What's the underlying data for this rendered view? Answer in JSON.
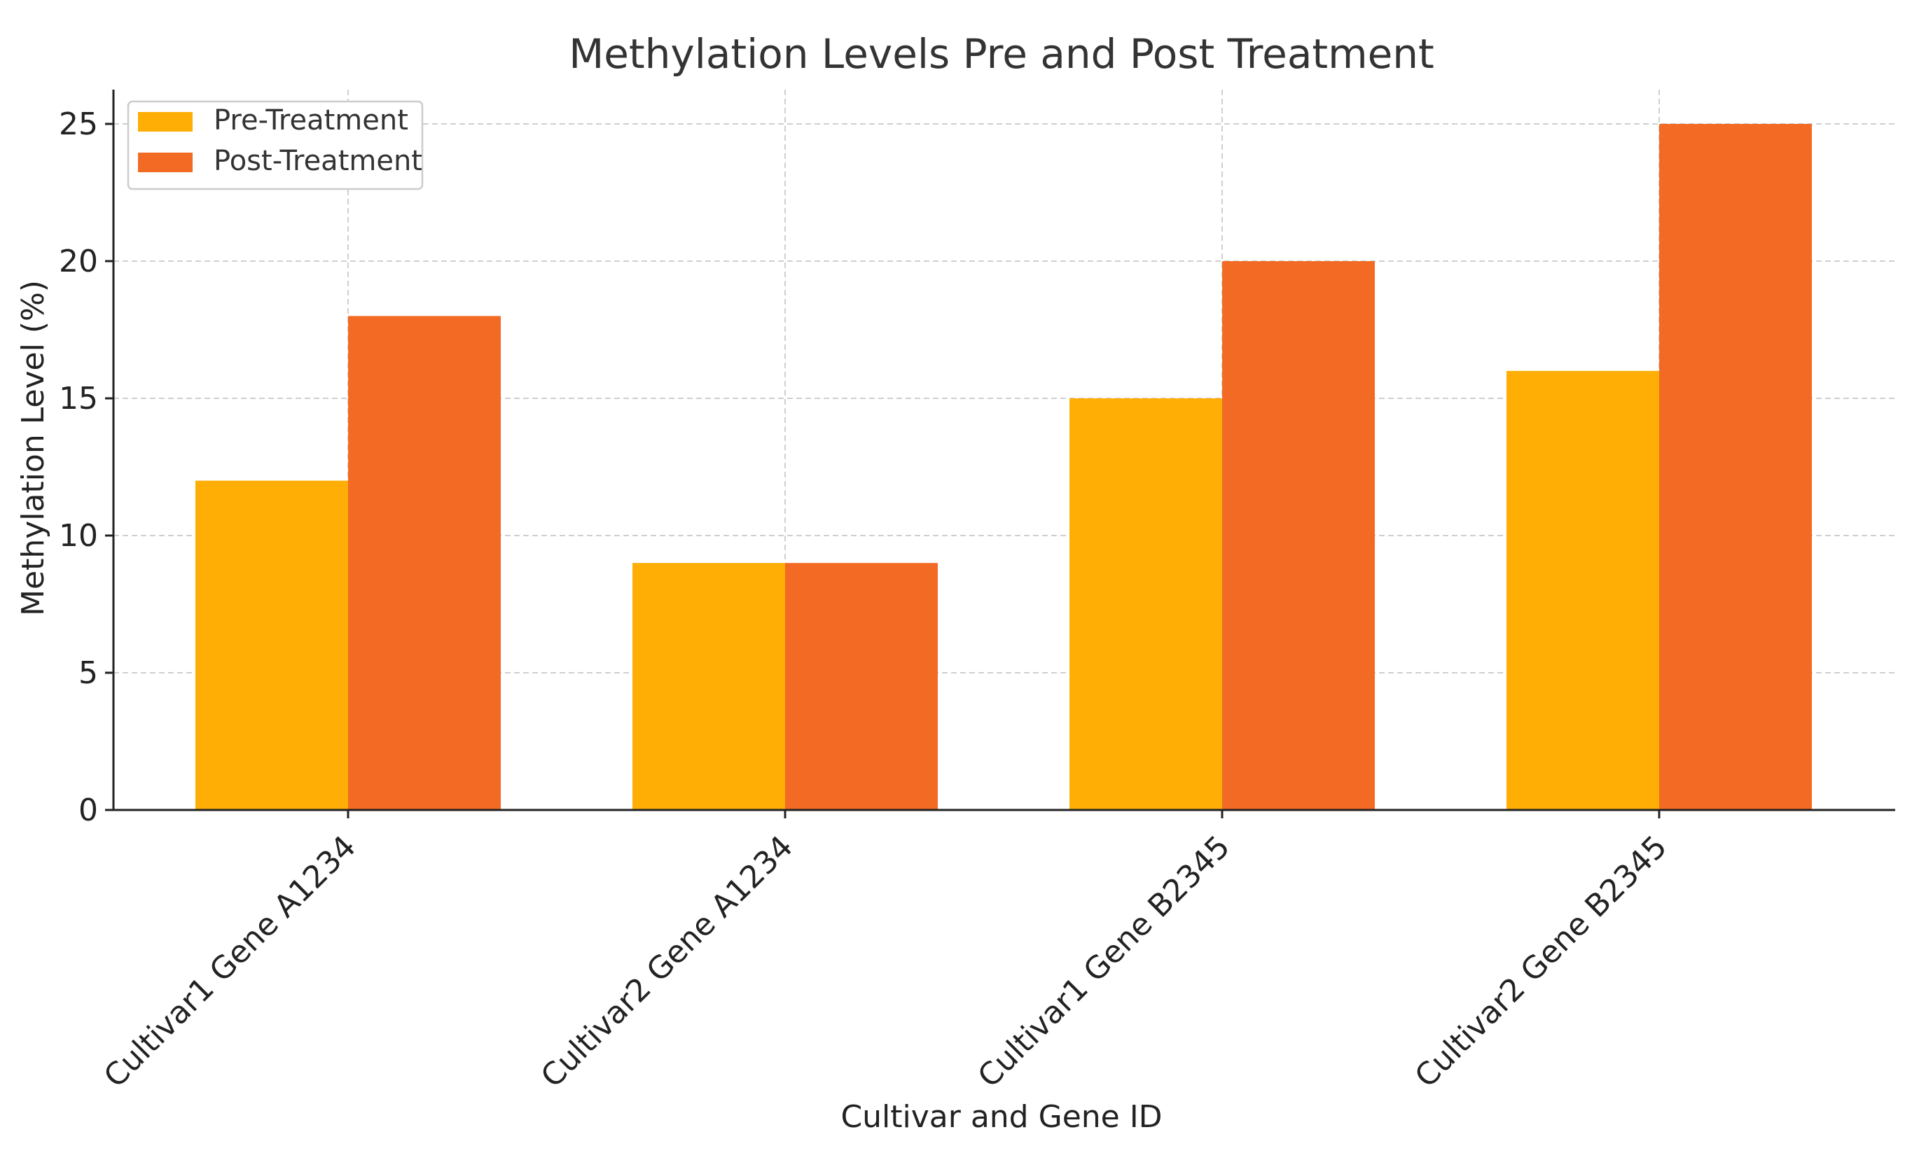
{
  "chart_data": {
    "type": "bar",
    "title": "Methylation Levels Pre and Post Treatment",
    "xlabel": "Cultivar and Gene ID",
    "ylabel": "Methylation Level (%)",
    "categories": [
      "Cultivar1 Gene A1234",
      "Cultivar2 Gene A1234",
      "Cultivar1 Gene B2345",
      "Cultivar2 Gene B2345"
    ],
    "series": [
      {
        "name": "Pre-Treatment",
        "color": "#FFAE05",
        "values": [
          12,
          9,
          15,
          16
        ]
      },
      {
        "name": "Post-Treatment",
        "color": "#F26A23",
        "values": [
          18,
          9,
          20,
          25
        ]
      }
    ],
    "ylim": [
      0,
      26.25
    ],
    "yticks": [
      0,
      5,
      10,
      15,
      20,
      25
    ],
    "grid": true,
    "legend_position": "top-left"
  }
}
